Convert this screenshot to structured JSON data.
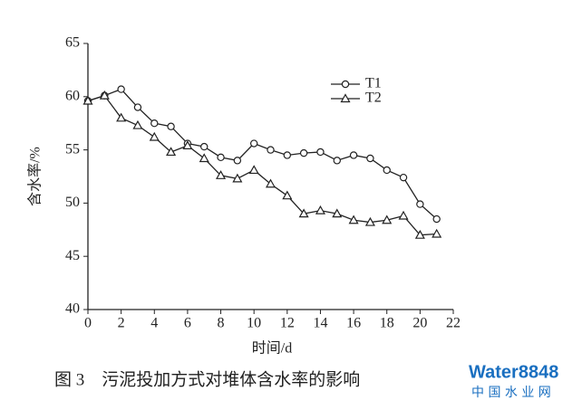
{
  "chart_data": {
    "type": "line",
    "y_label": "含水率/%",
    "x_label": "时间/d",
    "caption": "图 3　污泥投加方式对堆体含水率的影响",
    "watermark": "Water8848",
    "watermark_sub": "中 国 水 业 网",
    "x": [
      0,
      1,
      2,
      3,
      4,
      5,
      6,
      7,
      8,
      9,
      10,
      11,
      12,
      13,
      14,
      15,
      16,
      17,
      18,
      19,
      20,
      21
    ],
    "series": [
      {
        "name": "T1",
        "color": "#222222",
        "marker": "circle",
        "values": [
          59.6,
          60.1,
          60.7,
          59.0,
          57.5,
          57.2,
          55.6,
          55.3,
          54.3,
          54.0,
          55.6,
          55.0,
          54.5,
          54.7,
          54.8,
          54.0,
          54.5,
          54.2,
          53.1,
          52.4,
          49.9,
          48.5
        ]
      },
      {
        "name": "T2",
        "color": "#222222",
        "marker": "triangle",
        "values": [
          59.6,
          60.1,
          58.0,
          57.3,
          56.2,
          54.8,
          55.4,
          54.2,
          52.6,
          52.3,
          53.1,
          51.8,
          50.7,
          49.0,
          49.3,
          49.0,
          48.4,
          48.2,
          48.4,
          48.8,
          47.0,
          47.1
        ]
      }
    ],
    "xlim": [
      0,
      22
    ],
    "xticks": [
      0,
      2,
      4,
      6,
      8,
      10,
      12,
      14,
      16,
      18,
      20,
      22
    ],
    "ylim": [
      40,
      65
    ],
    "yticks": [
      40,
      45,
      50,
      55,
      60,
      65
    ],
    "grid": false,
    "legend": "top-right"
  }
}
